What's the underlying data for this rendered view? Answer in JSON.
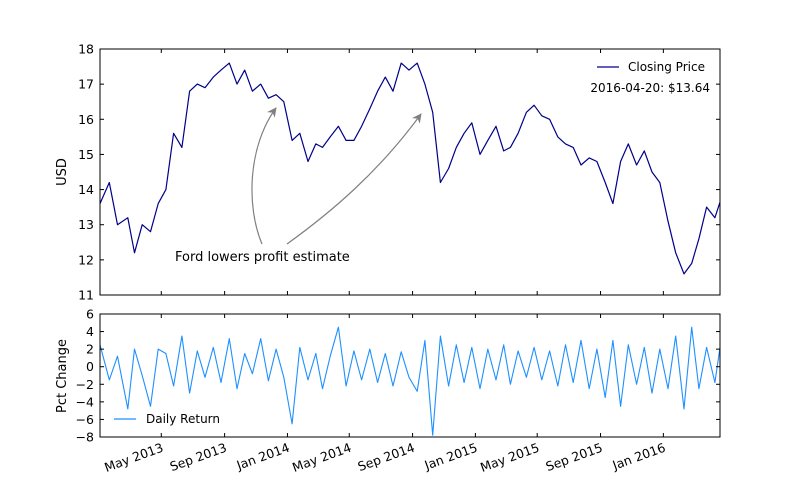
{
  "chart_data": [
    {
      "type": "line",
      "title": "",
      "xlabel": "",
      "ylabel": "USD",
      "ylim": [
        11,
        18
      ],
      "yticks": [
        11,
        12,
        13,
        14,
        15,
        16,
        17,
        18
      ],
      "xlim": [
        "2013-01-02",
        "2016-04-20"
      ],
      "grid": false,
      "legend_position": "top-right",
      "colors": {
        "line": "#00008b"
      },
      "series": [
        {
          "name": "Closing Price",
          "x": [
            "2013-01-02",
            "2013-01-20",
            "2013-02-05",
            "2013-02-25",
            "2013-03-10",
            "2013-03-25",
            "2013-04-10",
            "2013-04-25",
            "2013-05-10",
            "2013-05-25",
            "2013-06-10",
            "2013-06-25",
            "2013-07-10",
            "2013-07-25",
            "2013-08-10",
            "2013-08-25",
            "2013-09-10",
            "2013-09-25",
            "2013-10-10",
            "2013-10-25",
            "2013-11-10",
            "2013-11-25",
            "2013-12-10",
            "2013-12-25",
            "2014-01-10",
            "2014-01-25",
            "2014-02-10",
            "2014-02-25",
            "2014-03-10",
            "2014-03-25",
            "2014-04-10",
            "2014-04-25",
            "2014-05-10",
            "2014-05-25",
            "2014-06-10",
            "2014-06-25",
            "2014-07-10",
            "2014-07-25",
            "2014-08-10",
            "2014-08-25",
            "2014-09-10",
            "2014-09-25",
            "2014-10-10",
            "2014-10-25",
            "2014-11-10",
            "2014-11-25",
            "2014-12-10",
            "2014-12-25",
            "2015-01-10",
            "2015-01-25",
            "2015-02-10",
            "2015-02-25",
            "2015-03-10",
            "2015-03-25",
            "2015-04-10",
            "2015-04-25",
            "2015-05-10",
            "2015-05-25",
            "2015-06-10",
            "2015-06-25",
            "2015-07-10",
            "2015-07-25",
            "2015-08-10",
            "2015-08-25",
            "2015-09-10",
            "2015-09-25",
            "2015-10-10",
            "2015-10-25",
            "2015-11-10",
            "2015-11-25",
            "2015-12-10",
            "2015-12-25",
            "2016-01-10",
            "2016-01-25",
            "2016-02-10",
            "2016-02-25",
            "2016-03-10",
            "2016-03-25",
            "2016-04-10",
            "2016-04-20"
          ],
          "values": [
            13.6,
            14.2,
            13.0,
            13.2,
            12.2,
            13.0,
            12.8,
            13.6,
            14.0,
            15.6,
            15.2,
            16.8,
            17.0,
            16.9,
            17.2,
            17.4,
            17.6,
            17.0,
            17.4,
            16.8,
            17.0,
            16.6,
            16.7,
            16.5,
            15.4,
            15.6,
            14.8,
            15.3,
            15.2,
            15.5,
            15.8,
            15.4,
            15.4,
            15.8,
            16.3,
            16.8,
            17.2,
            16.8,
            17.6,
            17.4,
            17.6,
            17.0,
            16.2,
            14.2,
            14.6,
            15.2,
            15.6,
            15.9,
            15.0,
            15.4,
            15.8,
            15.1,
            15.2,
            15.6,
            16.2,
            16.4,
            16.1,
            16.0,
            15.5,
            15.3,
            15.2,
            14.7,
            14.9,
            14.8,
            14.2,
            13.6,
            14.8,
            15.3,
            14.7,
            15.1,
            14.5,
            14.2,
            13.1,
            12.2,
            11.6,
            11.9,
            12.6,
            13.5,
            13.2,
            13.64
          ]
        }
      ],
      "annotations": [
        {
          "text": "Ford lowers profit estimate",
          "targets": [
            "2013-12-18",
            "2014-09-20"
          ]
        },
        {
          "text": "2016-04-20: $13.64"
        }
      ],
      "xticks": [
        "May 2013",
        "Sep 2013",
        "Jan 2014",
        "May 2014",
        "Sep 2014",
        "Jan 2015",
        "May 2015",
        "Sep 2015",
        "Jan 2016"
      ],
      "xtick_dates": [
        "2013-05-01",
        "2013-09-01",
        "2014-01-01",
        "2014-05-01",
        "2014-09-01",
        "2015-01-01",
        "2015-05-01",
        "2015-09-01",
        "2016-01-01"
      ]
    },
    {
      "type": "line",
      "title": "",
      "xlabel": "",
      "ylabel": "Pct Change",
      "ylim": [
        -8,
        6
      ],
      "yticks": [
        -8,
        -6,
        -4,
        -2,
        0,
        2,
        4,
        6
      ],
      "xlim": [
        "2013-01-02",
        "2016-04-20"
      ],
      "grid": false,
      "legend_position": "bottom-left",
      "colors": {
        "line": "#1e90ff"
      },
      "series": [
        {
          "name": "Daily Return",
          "x": [
            "2013-01-02",
            "2013-01-20",
            "2013-02-05",
            "2013-02-25",
            "2013-03-10",
            "2013-03-25",
            "2013-04-10",
            "2013-04-25",
            "2013-05-10",
            "2013-05-25",
            "2013-06-10",
            "2013-06-25",
            "2013-07-10",
            "2013-07-25",
            "2013-08-10",
            "2013-08-25",
            "2013-09-10",
            "2013-09-25",
            "2013-10-10",
            "2013-10-25",
            "2013-11-10",
            "2013-11-25",
            "2013-12-10",
            "2013-12-25",
            "2014-01-10",
            "2014-01-25",
            "2014-02-10",
            "2014-02-25",
            "2014-03-10",
            "2014-03-25",
            "2014-04-10",
            "2014-04-25",
            "2014-05-10",
            "2014-05-25",
            "2014-06-10",
            "2014-06-25",
            "2014-07-10",
            "2014-07-25",
            "2014-08-10",
            "2014-08-25",
            "2014-09-10",
            "2014-09-25",
            "2014-10-10",
            "2014-10-25",
            "2014-11-10",
            "2014-11-25",
            "2014-12-10",
            "2014-12-25",
            "2015-01-10",
            "2015-01-25",
            "2015-02-10",
            "2015-02-25",
            "2015-03-10",
            "2015-03-25",
            "2015-04-10",
            "2015-04-25",
            "2015-05-10",
            "2015-05-25",
            "2015-06-10",
            "2015-06-25",
            "2015-07-10",
            "2015-07-25",
            "2015-08-10",
            "2015-08-25",
            "2015-09-10",
            "2015-09-25",
            "2015-10-10",
            "2015-10-25",
            "2015-11-10",
            "2015-11-25",
            "2015-12-10",
            "2015-12-25",
            "2016-01-10",
            "2016-01-25",
            "2016-02-10",
            "2016-02-25",
            "2016-03-10",
            "2016-03-25",
            "2016-04-10",
            "2016-04-20"
          ],
          "values": [
            2.5,
            -1.5,
            1.2,
            -4.8,
            2.0,
            -1.0,
            -4.5,
            2.0,
            1.5,
            -2.2,
            3.5,
            -3.0,
            1.8,
            -1.2,
            2.2,
            -1.8,
            3.2,
            -2.5,
            1.5,
            -0.8,
            3.2,
            -1.6,
            2.0,
            -1.2,
            -6.5,
            2.2,
            -1.5,
            1.5,
            -2.5,
            1.2,
            4.5,
            -2.2,
            1.8,
            -1.5,
            2.0,
            -1.8,
            1.5,
            -2.2,
            1.7,
            -1.2,
            -2.8,
            3.0,
            -7.8,
            3.5,
            -2.2,
            2.5,
            -1.8,
            2.2,
            -2.5,
            2.0,
            -1.5,
            2.5,
            -2.0,
            1.8,
            -1.2,
            2.2,
            -1.5,
            1.8,
            -2.2,
            2.5,
            -1.8,
            3.0,
            -2.5,
            2.0,
            -3.5,
            3.0,
            -4.5,
            2.5,
            -2.0,
            2.2,
            -3.0,
            2.0,
            -2.5,
            3.5,
            -4.8,
            4.5,
            -2.5,
            2.2,
            -1.8,
            2.2
          ]
        }
      ],
      "xticks": [
        "May 2013",
        "Sep 2013",
        "Jan 2014",
        "May 2014",
        "Sep 2014",
        "Jan 2015",
        "May 2015",
        "Sep 2015",
        "Jan 2016"
      ],
      "xtick_dates": [
        "2013-05-01",
        "2013-09-01",
        "2014-01-01",
        "2014-05-01",
        "2014-09-01",
        "2015-01-01",
        "2015-05-01",
        "2015-09-01",
        "2016-01-01"
      ]
    }
  ]
}
